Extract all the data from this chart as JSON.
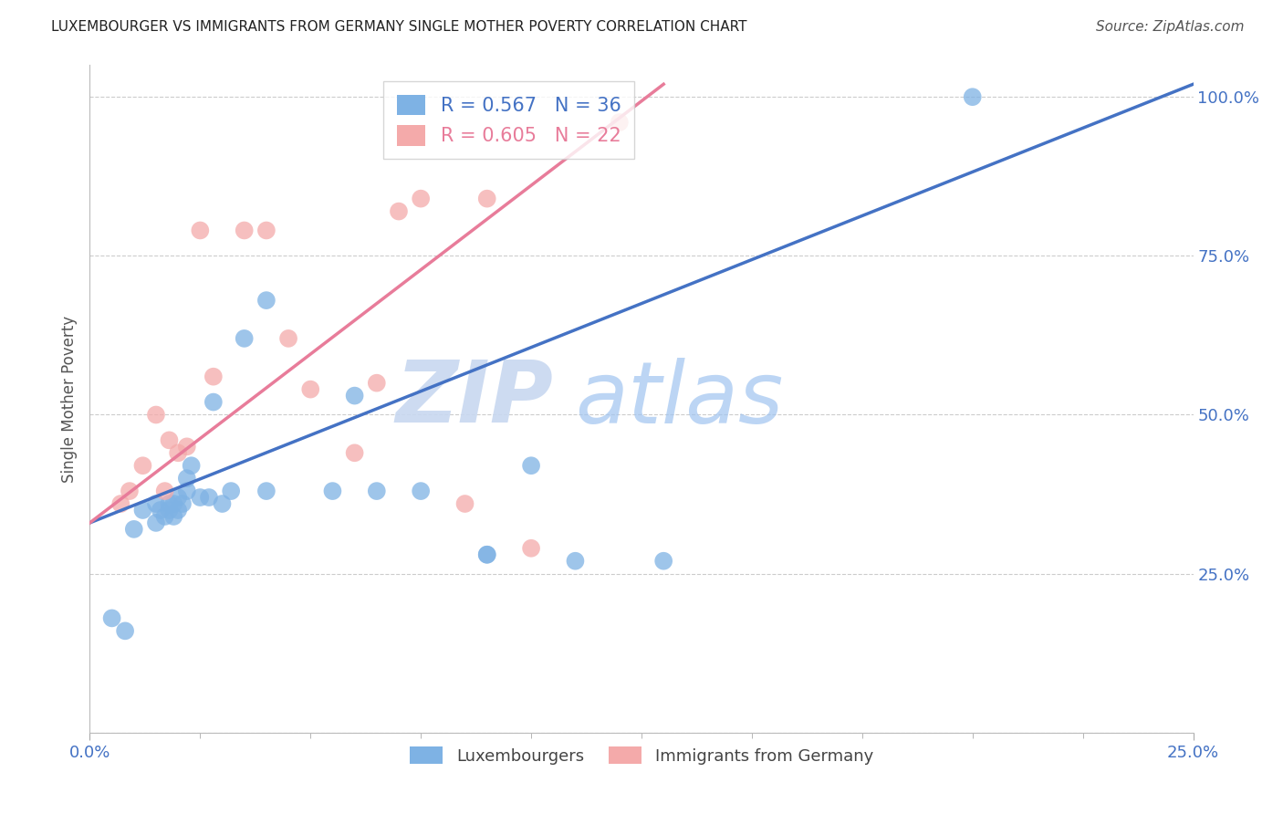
{
  "title": "LUXEMBOURGER VS IMMIGRANTS FROM GERMANY SINGLE MOTHER POVERTY CORRELATION CHART",
  "source": "Source: ZipAtlas.com",
  "ylabel": "Single Mother Poverty",
  "xlim": [
    0.0,
    0.25
  ],
  "ylim": [
    0.0,
    1.05
  ],
  "ytick_values": [
    0.0,
    0.25,
    0.5,
    0.75,
    1.0
  ],
  "ytick_labels": [
    "",
    "25.0%",
    "50.0%",
    "75.0%",
    "100.0%"
  ],
  "xtick_values": [
    0.0,
    0.25
  ],
  "xtick_labels": [
    "0.0%",
    "25.0%"
  ],
  "blue_R": 0.567,
  "blue_N": 36,
  "pink_R": 0.605,
  "pink_N": 22,
  "blue_color": "#7EB2E4",
  "pink_color": "#F4AAAA",
  "blue_line_color": "#4472C4",
  "pink_line_color": "#E87C9A",
  "watermark_zip": "ZIP",
  "watermark_atlas": "atlas",
  "blue_label": "Luxembourgers",
  "pink_label": "Immigrants from Germany",
  "blue_scatter_x": [
    0.005,
    0.008,
    0.01,
    0.012,
    0.015,
    0.015,
    0.016,
    0.017,
    0.018,
    0.018,
    0.019,
    0.019,
    0.02,
    0.02,
    0.021,
    0.022,
    0.022,
    0.023,
    0.025,
    0.027,
    0.028,
    0.03,
    0.032,
    0.035,
    0.04,
    0.04,
    0.055,
    0.06,
    0.065,
    0.075,
    0.09,
    0.09,
    0.1,
    0.11,
    0.13,
    0.2
  ],
  "blue_scatter_y": [
    0.18,
    0.16,
    0.32,
    0.35,
    0.33,
    0.36,
    0.35,
    0.34,
    0.35,
    0.36,
    0.34,
    0.36,
    0.35,
    0.37,
    0.36,
    0.38,
    0.4,
    0.42,
    0.37,
    0.37,
    0.52,
    0.36,
    0.38,
    0.62,
    0.38,
    0.68,
    0.38,
    0.53,
    0.38,
    0.38,
    0.28,
    0.28,
    0.42,
    0.27,
    0.27,
    1.0
  ],
  "pink_scatter_x": [
    0.007,
    0.009,
    0.012,
    0.015,
    0.017,
    0.018,
    0.02,
    0.022,
    0.025,
    0.028,
    0.035,
    0.04,
    0.045,
    0.05,
    0.06,
    0.065,
    0.07,
    0.075,
    0.085,
    0.09,
    0.1,
    0.12
  ],
  "pink_scatter_y": [
    0.36,
    0.38,
    0.42,
    0.5,
    0.38,
    0.46,
    0.44,
    0.45,
    0.79,
    0.56,
    0.79,
    0.79,
    0.62,
    0.54,
    0.44,
    0.55,
    0.82,
    0.84,
    0.36,
    0.84,
    0.29,
    0.96
  ],
  "blue_line_x0": 0.0,
  "blue_line_y0": 0.33,
  "blue_line_x1": 0.25,
  "blue_line_y1": 1.02,
  "pink_line_x0": 0.0,
  "pink_line_y0": 0.33,
  "pink_line_x1": 0.13,
  "pink_line_y1": 1.02
}
